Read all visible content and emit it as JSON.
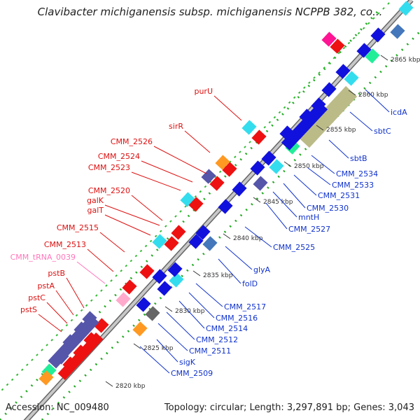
{
  "title": "Clavibacter michiganensis subsp. michiganensis NCPPB 382, co...",
  "footer": {
    "accession": "Accession: NC_009480",
    "topology": "Topology: circular; Length: 3,297,891 bp; Genes: 3,043"
  },
  "colors": {
    "forward_cds": "#ee1111",
    "reverse_cds": "#1111dd",
    "trna": "#ffaacc",
    "hypothetical": "#5555aa",
    "cyan_feature": "#33ddee",
    "olive_feature": "#bbbb88",
    "green_feature": "#22ee99",
    "label_red": "#dd1111",
    "label_blue": "#1133cc",
    "label_pink": "#ff77bb",
    "backbone": "#999999"
  },
  "ticks": [
    "2820 kbp",
    "2825 kbp",
    "2830 kbp",
    "2835 kbp",
    "2840 kbp",
    "2845 kbp",
    "2850 kbp",
    "2855 kbp",
    "2860 kbp",
    "2865 kbp"
  ],
  "left_labels": [
    {
      "text": "purU",
      "color": "red"
    },
    {
      "text": "sirR",
      "color": "red"
    },
    {
      "text": "CMM_2526",
      "color": "red"
    },
    {
      "text": "CMM_2524",
      "color": "red"
    },
    {
      "text": "CMM_2523",
      "color": "red"
    },
    {
      "text": "CMM_2520",
      "color": "red"
    },
    {
      "text": "galK",
      "color": "red"
    },
    {
      "text": "galT",
      "color": "red"
    },
    {
      "text": "CMM_2515",
      "color": "red"
    },
    {
      "text": "CMM_2513",
      "color": "red"
    },
    {
      "text": "CMM_tRNA_0039",
      "color": "pink"
    },
    {
      "text": "pstB",
      "color": "red"
    },
    {
      "text": "pstA",
      "color": "red"
    },
    {
      "text": "pstC",
      "color": "red"
    },
    {
      "text": "pstS",
      "color": "red"
    }
  ],
  "right_labels": [
    {
      "text": "icdA"
    },
    {
      "text": "sbtC"
    },
    {
      "text": "sbtB"
    },
    {
      "text": "CMM_2534"
    },
    {
      "text": "CMM_2533"
    },
    {
      "text": "CMM_2531"
    },
    {
      "text": "CMM_2530"
    },
    {
      "text": "mntH"
    },
    {
      "text": "CMM_2527"
    },
    {
      "text": "CMM_2525"
    },
    {
      "text": "glyA"
    },
    {
      "text": "folD"
    },
    {
      "text": "CMM_2517"
    },
    {
      "text": "CMM_2516"
    },
    {
      "text": "CMM_2514"
    },
    {
      "text": "CMM_2512"
    },
    {
      "text": "CMM_2511"
    },
    {
      "text": "sigK"
    },
    {
      "text": "CMM_2509"
    }
  ]
}
